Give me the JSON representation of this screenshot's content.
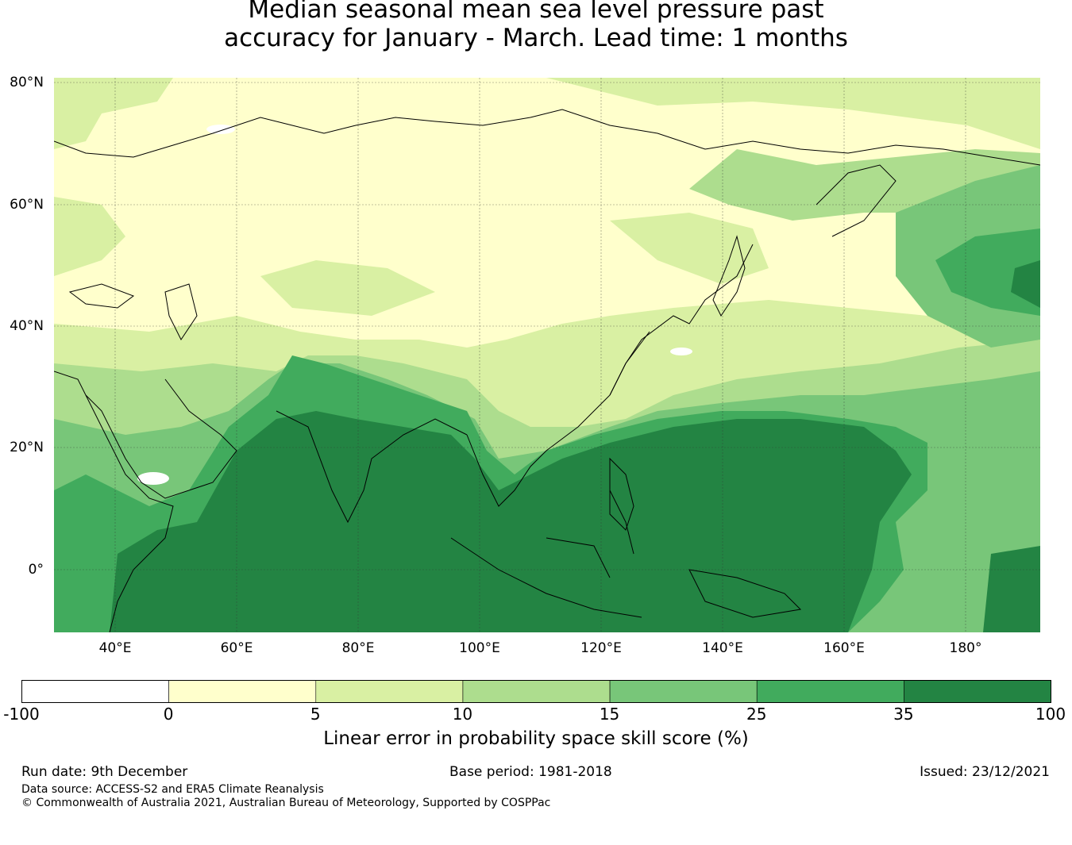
{
  "title": {
    "line1": "Median seasonal mean sea level pressure past",
    "line2": "accuracy for January - March. Lead time: 1 months"
  },
  "map": {
    "region": "Asia / Indian Ocean / Western Pacific",
    "lat_labels": [
      "80°N",
      "60°N",
      "40°N",
      "20°N",
      "0°"
    ],
    "lon_labels": [
      "40°E",
      "60°E",
      "80°E",
      "100°E",
      "120°E",
      "140°E",
      "160°E",
      "180°"
    ]
  },
  "colorbar": {
    "ticks": [
      "-100",
      "0",
      "5",
      "10",
      "15",
      "25",
      "35",
      "100"
    ],
    "colors": [
      "#ffffff",
      "#ffffcc",
      "#d9f0a3",
      "#addd8e",
      "#78c679",
      "#41ab5d",
      "#238443"
    ],
    "label": "Linear error in probability space skill score (%)"
  },
  "footer": {
    "run_date": "Run date: 9th December",
    "base_period": "Base period: 1981-2018",
    "issued": "Issued: 23/12/2021",
    "data_source": "Data source: ACCESS-S2 and ERA5 Climate Reanalysis",
    "copyright": "© Commonwealth of Australia 2021, Australian Bureau of Meteorology, Supported by COSPPac"
  }
}
